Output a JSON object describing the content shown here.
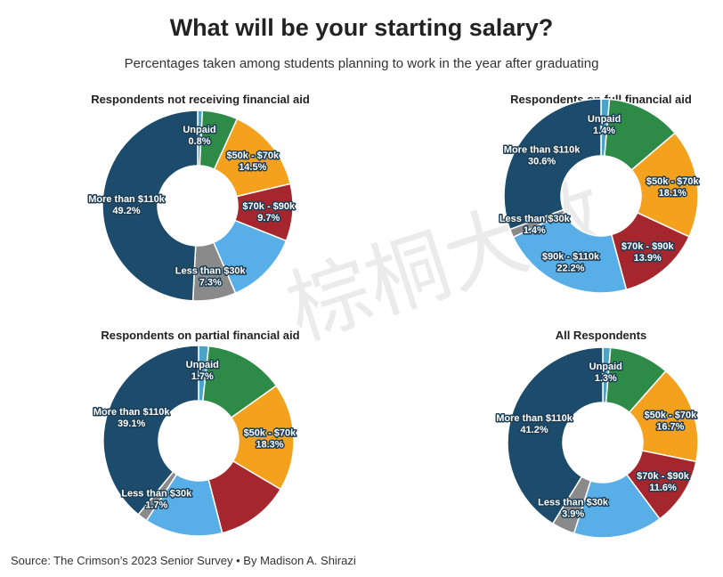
{
  "header": {
    "title": "What will be your starting salary?",
    "subtitle": "Percentages taken among students planning to work in the year after graduating"
  },
  "footer": {
    "source": "Source: The Crimson’s 2023 Senior Survey • By Madison A. Shirazi"
  },
  "watermark": {
    "text": "棕桐大数"
  },
  "colors": {
    "Unpaid": "#4ba3c7",
    "Less than $30k": "#8a8a8a",
    "$30k - $50k": "#5b9bd5",
    "$50k - $70k": "#f4a11e",
    "$70k - $90k": "#a6262e",
    "$90k - $110k": "#58aee6",
    "More than $110k": "#1c4b6b",
    "Green": "#2e8b47"
  },
  "chart_data": [
    {
      "type": "pie",
      "title": "Respondents not receiving financial aid",
      "slices": [
        {
          "name": "Unpaid",
          "value": 0.8,
          "label": "0.8%"
        },
        {
          "name": "",
          "value": 6.0,
          "label": "",
          "color": "#2e8b47"
        },
        {
          "name": "$50k - $70k",
          "value": 14.5,
          "label": "14.5%"
        },
        {
          "name": "$70k - $90k",
          "value": 9.7,
          "label": "9.7%"
        },
        {
          "name": "",
          "value": 12.5,
          "label": "",
          "color": "#58aee6"
        },
        {
          "name": "Less than $30k",
          "value": 7.3,
          "label": "7.3%"
        },
        {
          "name": "More than $110k",
          "value": 49.2,
          "label": "49.2%"
        }
      ]
    },
    {
      "type": "pie",
      "title": "Respondents on full financial aid",
      "slices": [
        {
          "name": "Unpaid",
          "value": 1.4,
          "label": "1.4%"
        },
        {
          "name": "",
          "value": 12.4,
          "label": "",
          "color": "#2e8b47"
        },
        {
          "name": "$50k - $70k",
          "value": 18.1,
          "label": "18.1%"
        },
        {
          "name": "$70k - $90k",
          "value": 13.9,
          "label": "13.9%"
        },
        {
          "name": "$90k - $110k",
          "value": 22.2,
          "label": "22.2%"
        },
        {
          "name": "Less than $30k",
          "value": 1.4,
          "label": "1.4%"
        },
        {
          "name": "More than $110k",
          "value": 30.6,
          "label": "30.6%"
        }
      ]
    },
    {
      "type": "pie",
      "title": "Respondents on partial financial aid",
      "slices": [
        {
          "name": "Unpaid",
          "value": 1.7,
          "label": "1.7%"
        },
        {
          "name": "",
          "value": 13.5,
          "label": "",
          "color": "#2e8b47"
        },
        {
          "name": "$50k - $70k",
          "value": 18.3,
          "label": "18.3%"
        },
        {
          "name": "",
          "value": 12.5,
          "label": "",
          "color": "#a6262e"
        },
        {
          "name": "",
          "value": 13.2,
          "label": "",
          "color": "#58aee6"
        },
        {
          "name": "Less than $30k",
          "value": 1.7,
          "label": "1.7%"
        },
        {
          "name": "More than $110k",
          "value": 39.1,
          "label": "39.1%"
        }
      ]
    },
    {
      "type": "pie",
      "title": "All Respondents",
      "slices": [
        {
          "name": "Unpaid",
          "value": 1.3,
          "label": "1.3%"
        },
        {
          "name": "",
          "value": 10.2,
          "label": "",
          "color": "#2e8b47"
        },
        {
          "name": "$50k - $70k",
          "value": 16.7,
          "label": "16.7%"
        },
        {
          "name": "$70k - $90k",
          "value": 11.6,
          "label": "11.6%"
        },
        {
          "name": "",
          "value": 15.1,
          "label": "",
          "color": "#58aee6"
        },
        {
          "name": "Less than $30k",
          "value": 3.9,
          "label": "3.9%"
        },
        {
          "name": "More than $110k",
          "value": 41.2,
          "label": "41.2%"
        }
      ]
    }
  ]
}
